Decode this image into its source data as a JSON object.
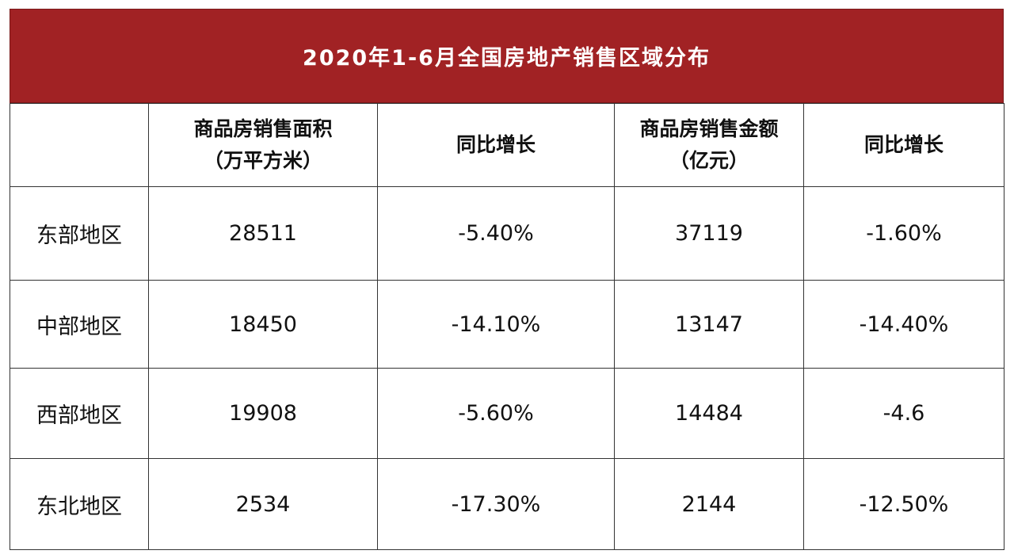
{
  "chart_data": {
    "type": "table",
    "title": "2020年1-6月全国房地产销售区域分布",
    "columns": [
      {
        "line1": "",
        "line2": ""
      },
      {
        "line1": "商品房销售面积",
        "line2": "（万平方米）"
      },
      {
        "line1": "同比增长",
        "line2": ""
      },
      {
        "line1": "商品房销售金额",
        "line2": "（亿元）"
      },
      {
        "line1": "同比增长",
        "line2": ""
      }
    ],
    "rows": [
      {
        "region": "东部地区",
        "area": "28511",
        "area_growth": "-5.40%",
        "amount": "37119",
        "amount_growth": "-1.60%"
      },
      {
        "region": "中部地区",
        "area": "18450",
        "area_growth": "-14.10%",
        "amount": "13147",
        "amount_growth": "-14.40%"
      },
      {
        "region": "西部地区",
        "area": "19908",
        "area_growth": "-5.60%",
        "amount": "14484",
        "amount_growth": "-4.6"
      },
      {
        "region": "东北地区",
        "area": "2534",
        "area_growth": "-17.30%",
        "amount": "2144",
        "amount_growth": "-12.50%"
      }
    ],
    "colors": {
      "title_background": "#a12224",
      "title_text": "#ffffff",
      "border": "#333333"
    }
  }
}
